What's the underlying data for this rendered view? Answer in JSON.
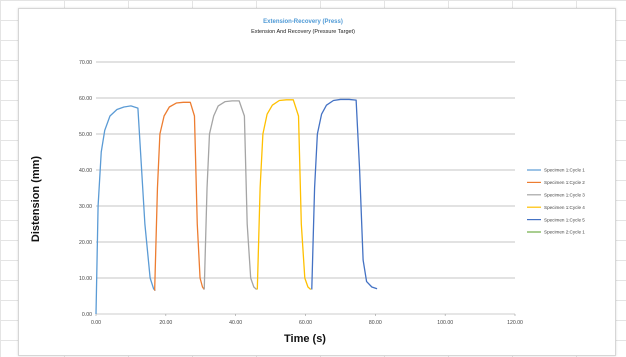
{
  "chart_data": {
    "type": "line",
    "title": "Extension-Recovery (Press)",
    "subtitle": "Extension And Recovery (Pressure Target)",
    "xlabel": "Time (s)",
    "ylabel": "Distension (mm)",
    "xlim": [
      0,
      120
    ],
    "ylim": [
      0,
      70
    ],
    "x_ticks": [
      "0.00",
      "20.00",
      "40.00",
      "60.00",
      "80.00",
      "100.00",
      "120.00"
    ],
    "y_ticks": [
      "0.00",
      "10.00",
      "20.00",
      "30.00",
      "40.00",
      "50.00",
      "60.00",
      "70.00"
    ],
    "grid": "horizontal",
    "legend_position": "right",
    "series": [
      {
        "name": "Specimen 1:Cycle 1",
        "color": "#5b9bd5",
        "x": [
          0,
          0.6,
          1.5,
          2.5,
          4,
          6,
          8,
          10,
          12,
          14,
          15.5,
          16.5,
          17
        ],
        "y": [
          0,
          30,
          45,
          51,
          55,
          56.8,
          57.5,
          57.8,
          57.2,
          25,
          10,
          7,
          6.5
        ]
      },
      {
        "name": "Specimen 1:Cycle 2",
        "color": "#ed7d31",
        "x": [
          16.8,
          17.6,
          18.3,
          19.5,
          21,
          23,
          25,
          27,
          28.2,
          29,
          29.8,
          30.5,
          31
        ],
        "y": [
          6.5,
          35,
          50,
          55,
          57.5,
          58.6,
          58.8,
          58.8,
          55,
          25,
          10,
          7.5,
          6.8
        ]
      },
      {
        "name": "Specimen 1:Cycle 3",
        "color": "#a5a5a5",
        "x": [
          31,
          31.8,
          32.5,
          33.7,
          35,
          37,
          39,
          41,
          42.5,
          43.3,
          44.3,
          45.2,
          46
        ],
        "y": [
          6.8,
          35,
          50,
          55,
          57.8,
          59,
          59.2,
          59.2,
          55,
          25,
          10,
          7.5,
          6.8
        ]
      },
      {
        "name": "Specimen 1:Cycle 4",
        "color": "#ffc000",
        "x": [
          46.2,
          47,
          47.8,
          49,
          50.5,
          52.5,
          54.5,
          56.5,
          58,
          58.8,
          59.8,
          60.7,
          61.5
        ],
        "y": [
          6.8,
          35,
          50,
          55.5,
          58,
          59.3,
          59.5,
          59.5,
          55,
          25,
          10,
          7.5,
          6.8
        ]
      },
      {
        "name": "Specimen 1:Cycle 5",
        "color": "#4472c4",
        "x": [
          61.8,
          62.6,
          63.4,
          64.6,
          66,
          68,
          70,
          72.5,
          74.5,
          75.5,
          76.5,
          77.5,
          79,
          80.5
        ],
        "y": [
          6.8,
          35,
          50,
          55.5,
          58,
          59.3,
          59.6,
          59.6,
          59.4,
          40,
          15,
          9,
          7.5,
          7
        ]
      },
      {
        "name": "Specimen 2:Cycle 1",
        "color": "#70ad47",
        "x": [],
        "y": []
      }
    ]
  }
}
